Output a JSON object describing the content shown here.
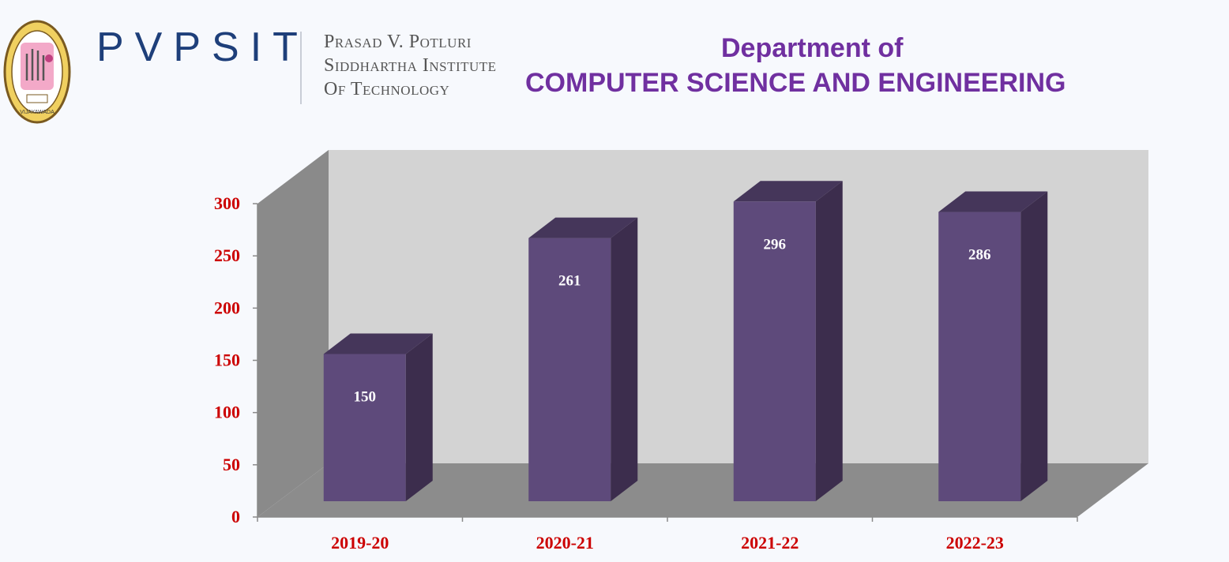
{
  "header": {
    "brand": "PVPSIT",
    "institute_lines": [
      "Prasad V. Potluri",
      "Siddhartha Institute",
      "Of Technology"
    ],
    "department_line1": "Department of",
    "department_line2": "COMPUTER SCIENCE AND ENGINEERING",
    "logo_icon": "college-seal-icon"
  },
  "colors": {
    "title": "#7030a0",
    "brand": "#1e3f7a",
    "bar_front": "#5e4a7b",
    "bar_side": "#3c2d4d",
    "bar_top": "#45365a",
    "tick_labels": "#cc0000",
    "back_wall": "#d3d3d3",
    "side_wall": "#8a8a8a",
    "floor": "#8c8c8c"
  },
  "chart_data": {
    "type": "bar",
    "categories": [
      "2019-20",
      "2020-21",
      "2021-22",
      "2022-23"
    ],
    "values": [
      150,
      261,
      296,
      286
    ],
    "ylim": [
      0,
      300
    ],
    "yticks": [
      0,
      50,
      100,
      150,
      200,
      250,
      300
    ],
    "title": "",
    "xlabel": "",
    "ylabel": "",
    "grid": false,
    "legend": "none",
    "style": "3d-column"
  }
}
